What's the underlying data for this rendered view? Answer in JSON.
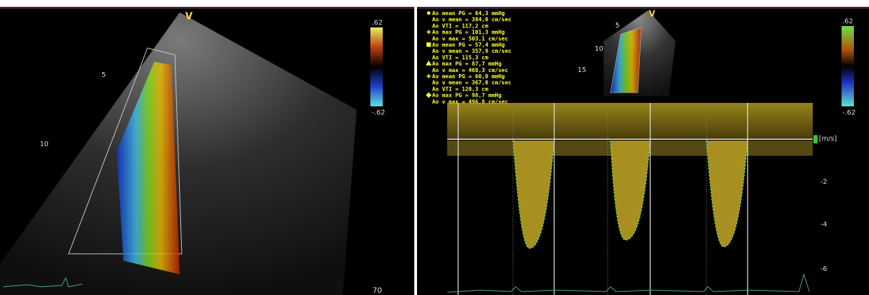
{
  "left_panel": {
    "view_marker": "V",
    "scale_max": ".62",
    "scale_min": "-.62",
    "depth_labels": [
      "5",
      "10"
    ],
    "frame_rate": "70"
  },
  "right_panel": {
    "measurements": [
      "Ao mean PG = 64,3 mmHg",
      "Ao v mean = 384,0 cm/sec",
      "Ao VTI = 117,2 cm",
      "Ao max PG = 101,3 mmHg",
      "Ao v max = 503,1 cm/sec",
      "Ao mean PG = 57,4 mmHg",
      "Ao v mean = 357,9 cm/sec",
      "Ao VTI = 115,3 cm",
      "Ao max PG = 87,7 mmHg",
      "Ao v max = 468,3 cm/sec",
      "Ao mean PG = 60,0 mmHg",
      "Ao v mean = 367,0 cm/sec",
      "Ao VTI = 120,3 cm",
      "Ao max PG = 98,7 mmHg",
      "Ao v max = 496,8 cm/sec"
    ],
    "view_marker": "V",
    "scale_max": ".62",
    "scale_min": "-.62",
    "depth_labels": [
      "5",
      "10",
      "15"
    ],
    "velocity_unit": "[m/s]",
    "velocity_labels": [
      "-2",
      "-4",
      "-6"
    ]
  }
}
